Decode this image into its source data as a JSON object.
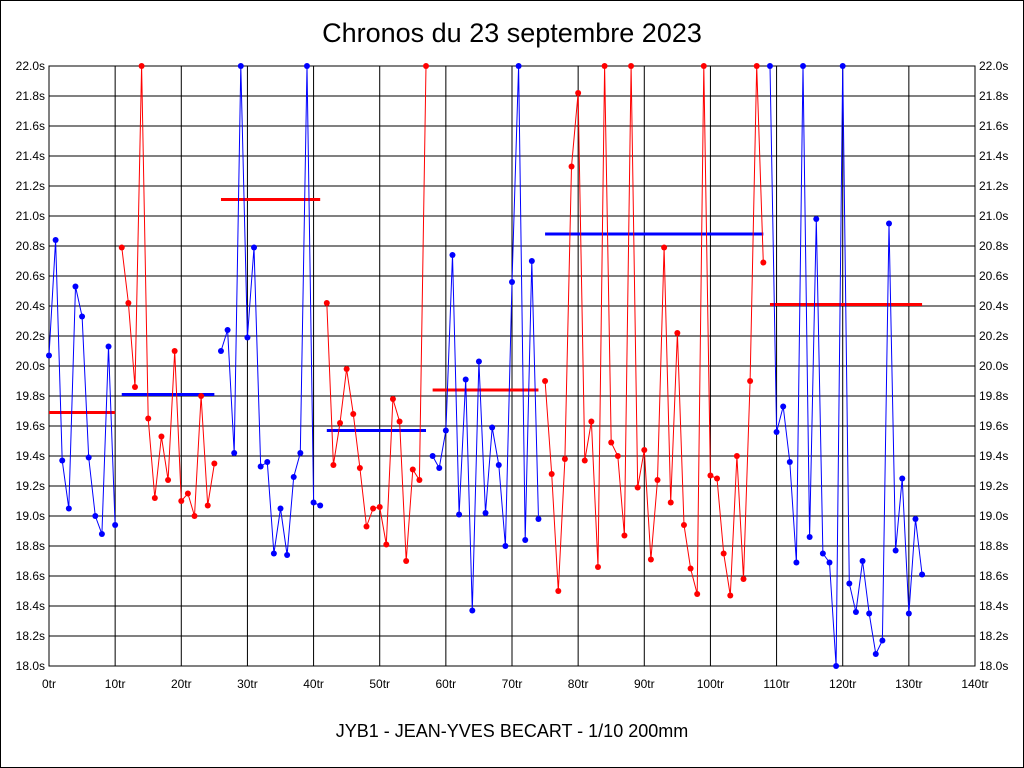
{
  "chart_data": {
    "type": "line",
    "title": "Chronos du 23 septembre 2023",
    "footer": "JYB1 - JEAN-YVES BECART - 1/10 200mm",
    "xlim": [
      0,
      140
    ],
    "ylim": [
      18.0,
      22.0
    ],
    "x_ticks": [
      0,
      10,
      20,
      30,
      40,
      50,
      60,
      70,
      80,
      90,
      100,
      110,
      120,
      130,
      140
    ],
    "x_tick_labels": [
      "0tr",
      "10tr",
      "20tr",
      "30tr",
      "40tr",
      "50tr",
      "60tr",
      "70tr",
      "80tr",
      "90tr",
      "100tr",
      "110tr",
      "120tr",
      "130tr",
      "140tr"
    ],
    "y_ticks": [
      18.0,
      18.2,
      18.4,
      18.6,
      18.8,
      19.0,
      19.2,
      19.4,
      19.6,
      19.8,
      20.0,
      20.2,
      20.4,
      20.6,
      20.8,
      21.0,
      21.2,
      21.4,
      21.6,
      21.8,
      22.0
    ],
    "y_tick_labels": [
      "18.0s",
      "18.2s",
      "18.4s",
      "18.6s",
      "18.8s",
      "19.0s",
      "19.2s",
      "19.4s",
      "19.6s",
      "19.8s",
      "20.0s",
      "20.2s",
      "20.4s",
      "20.6s",
      "20.8s",
      "21.0s",
      "21.2s",
      "21.4s",
      "21.6s",
      "21.8s",
      "22.0s"
    ],
    "grid": true,
    "colors": {
      "blue": "#0000ff",
      "red": "#ff0000"
    },
    "series": [
      {
        "color": "#0000ff",
        "x": [
          0,
          1,
          2,
          3,
          4,
          5,
          6,
          7,
          8,
          9,
          10
        ],
        "y": [
          20.07,
          20.84,
          19.37,
          19.05,
          20.53,
          20.33,
          19.39,
          19.0,
          18.88,
          20.13,
          18.94
        ]
      },
      {
        "color": "#ff0000",
        "x": [
          11,
          12,
          13,
          14,
          15,
          16,
          17,
          18,
          19,
          20,
          21,
          22,
          23,
          24,
          25
        ],
        "y": [
          20.79,
          20.42,
          19.86,
          22.0,
          19.65,
          19.12,
          19.53,
          19.24,
          20.1,
          19.1,
          19.15,
          19.0,
          19.8,
          19.07,
          19.35
        ]
      },
      {
        "color": "#0000ff",
        "x": [
          26,
          27,
          28,
          29,
          30,
          31,
          32,
          33,
          34,
          35,
          36,
          37,
          38,
          39,
          40,
          41
        ],
        "y": [
          20.1,
          20.24,
          19.42,
          22.0,
          20.19,
          20.79,
          19.33,
          19.36,
          18.75,
          19.05,
          18.74,
          19.26,
          19.42,
          22.0,
          19.09,
          19.07
        ]
      },
      {
        "color": "#ff0000",
        "x": [
          42,
          43,
          44,
          45,
          46,
          47,
          48,
          49,
          50,
          51,
          52,
          53,
          54,
          55,
          56,
          57
        ],
        "y": [
          20.42,
          19.34,
          19.62,
          19.98,
          19.68,
          19.32,
          18.93,
          19.05,
          19.06,
          18.81,
          19.78,
          19.63,
          18.7,
          19.31,
          19.24,
          22.0
        ]
      },
      {
        "color": "#0000ff",
        "x": [
          58,
          59,
          60,
          61,
          62,
          63,
          64,
          65,
          66,
          67,
          68,
          69,
          70,
          71,
          72,
          73,
          74
        ],
        "y": [
          19.4,
          19.32,
          19.57,
          20.74,
          19.01,
          19.91,
          18.37,
          20.03,
          19.02,
          19.59,
          19.34,
          18.8,
          20.56,
          22.0,
          18.84,
          20.7,
          18.98
        ]
      },
      {
        "color": "#ff0000",
        "x": [
          75,
          76,
          77,
          78,
          79,
          80,
          81,
          82,
          83,
          84,
          85,
          86,
          87,
          88,
          89,
          90,
          91,
          92,
          93,
          94,
          95,
          96,
          97,
          98,
          99,
          100,
          101,
          102,
          103,
          104,
          105,
          106,
          107,
          108
        ],
        "y": [
          19.9,
          19.28,
          18.5,
          19.38,
          21.33,
          21.82,
          19.37,
          19.63,
          18.66,
          22.0,
          19.49,
          19.4,
          18.87,
          22.0,
          19.19,
          19.44,
          18.71,
          19.24,
          20.79,
          19.09,
          20.22,
          18.94,
          18.65,
          18.48,
          22.0,
          19.27,
          19.25,
          18.75,
          18.47,
          19.4,
          18.58,
          19.9,
          22.0,
          20.69
        ]
      },
      {
        "color": "#0000ff",
        "x": [
          109,
          110,
          111,
          112,
          113,
          114,
          115,
          116,
          117,
          118,
          119,
          120,
          121,
          122,
          123,
          124,
          125,
          126,
          127,
          128,
          129,
          130,
          131,
          132
        ],
        "y": [
          22.0,
          19.56,
          19.73,
          19.36,
          18.69,
          22.0,
          18.86,
          20.98,
          18.75,
          18.69,
          18.0,
          22.0,
          18.55,
          18.36,
          18.7,
          18.35,
          18.08,
          18.17,
          20.95,
          18.77,
          19.25,
          18.35,
          18.98,
          18.61
        ]
      }
    ],
    "average_lines": [
      {
        "color": "#ff0000",
        "x": [
          0,
          10
        ],
        "y": 19.69
      },
      {
        "color": "#0000ff",
        "x": [
          11,
          25
        ],
        "y": 19.81
      },
      {
        "color": "#ff0000",
        "x": [
          26,
          41
        ],
        "y": 21.11
      },
      {
        "color": "#0000ff",
        "x": [
          42,
          57
        ],
        "y": 19.57
      },
      {
        "color": "#ff0000",
        "x": [
          58,
          74
        ],
        "y": 19.84
      },
      {
        "color": "#0000ff",
        "x": [
          75,
          108
        ],
        "y": 20.88
      },
      {
        "color": "#ff0000",
        "x": [
          109,
          132
        ],
        "y": 20.41
      }
    ]
  }
}
